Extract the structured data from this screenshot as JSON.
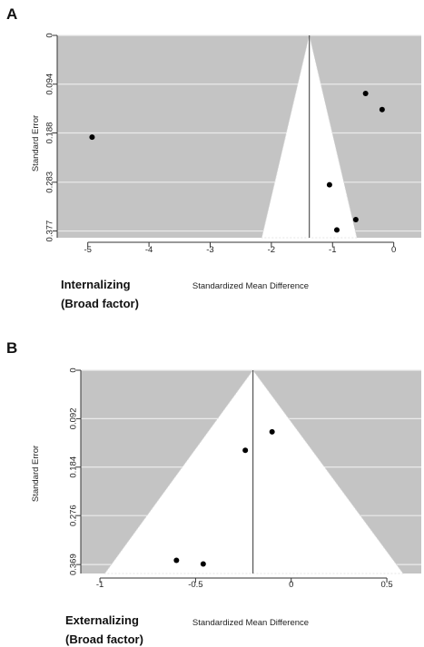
{
  "colors": {
    "background": "#ffffff",
    "funnel_outside": "#c4c4c4",
    "funnel_inside": "#ffffff",
    "gridline": "#ebebeb",
    "points": "#000000",
    "center_line": "#555555",
    "axis": "#333333"
  },
  "chart_data": [
    {
      "panel_label": "A",
      "type": "scatter",
      "subtype": "funnel-plot",
      "factor_label": [
        "Internalizing",
        "(Broad factor)"
      ],
      "xlabel": "Standardized Mean Difference",
      "ylabel": "Standard Error",
      "xlim": [
        -5.5,
        0.45
      ],
      "ylim": [
        0,
        0.39
      ],
      "y_reversed": true,
      "xticks": [
        -5,
        -4,
        -3,
        -2,
        -1,
        0
      ],
      "xtick_labels": [
        "-5",
        "-4",
        "-3",
        "-2",
        "-1",
        "0"
      ],
      "yticks": [
        0,
        0.094,
        0.188,
        0.283,
        0.377
      ],
      "ytick_labels": [
        "0",
        "0.094",
        "0.188",
        "0.283",
        "0.377"
      ],
      "center": -1.38,
      "funnel_base_left": -2.13,
      "funnel_base_right": -0.63,
      "points": [
        {
          "x": -4.93,
          "y": 0.196
        },
        {
          "x": -0.46,
          "y": 0.112
        },
        {
          "x": -0.19,
          "y": 0.143
        },
        {
          "x": -1.05,
          "y": 0.288
        },
        {
          "x": -0.62,
          "y": 0.355
        },
        {
          "x": -0.93,
          "y": 0.375
        }
      ]
    },
    {
      "panel_label": "B",
      "type": "scatter",
      "subtype": "funnel-plot",
      "factor_label": [
        "Externalizing",
        "(Broad factor)"
      ],
      "xlabel": "Standardized Mean Difference",
      "ylabel": "Standard Error",
      "xlim": [
        -1.1,
        0.68
      ],
      "ylim": [
        0,
        0.386
      ],
      "y_reversed": true,
      "xticks": [
        -1,
        -0.5,
        0,
        0.5
      ],
      "xtick_labels": [
        "-1",
        "-0.5",
        "0",
        "0.5"
      ],
      "yticks": [
        0,
        0.092,
        0.184,
        0.276,
        0.369
      ],
      "ytick_labels": [
        "0",
        "0.092",
        "0.184",
        "0.276",
        "0.369"
      ],
      "center": -0.2,
      "funnel_base_left": -0.94,
      "funnel_base_right": 0.55,
      "points": [
        {
          "x": -0.1,
          "y": 0.117
        },
        {
          "x": -0.24,
          "y": 0.152
        },
        {
          "x": -0.6,
          "y": 0.361
        },
        {
          "x": -0.46,
          "y": 0.368
        }
      ]
    }
  ]
}
